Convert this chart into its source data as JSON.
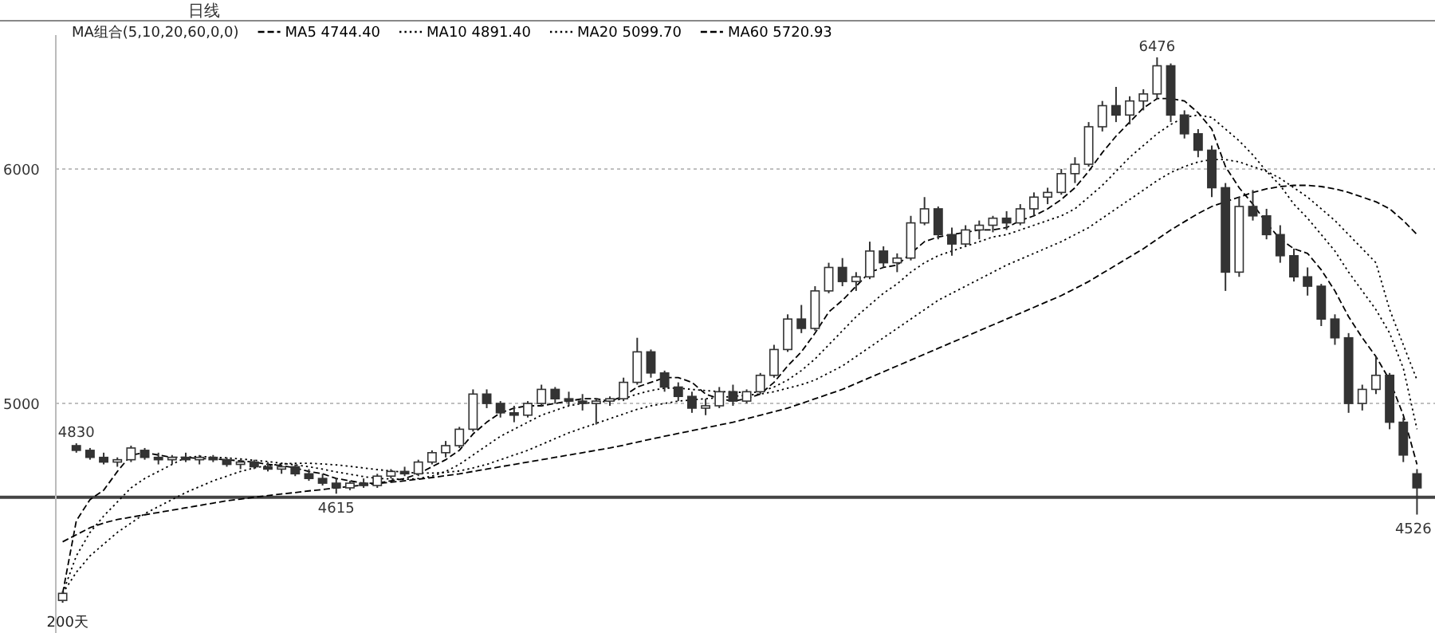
{
  "chart_data": {
    "type": "candlestick",
    "subtitle": "日线",
    "color": "#333333",
    "categories": [
      null,
      null,
      null,
      null,
      null,
      null,
      null,
      null,
      null,
      null,
      null,
      null,
      null,
      null,
      null,
      null,
      null,
      null,
      null,
      null,
      null,
      null,
      null,
      null,
      null,
      null,
      null,
      null,
      null,
      null,
      null,
      null,
      null,
      null,
      null,
      null,
      null,
      null,
      null,
      null,
      null,
      null,
      null,
      null,
      null,
      null,
      null,
      null,
      null,
      null,
      null,
      null,
      null,
      null,
      null,
      null,
      null,
      null,
      null,
      null,
      null,
      null,
      null,
      null,
      null,
      null,
      null,
      null,
      null,
      null,
      null,
      null,
      null,
      null,
      null,
      null,
      null,
      null,
      null,
      null,
      null,
      null,
      null,
      null,
      null,
      null,
      null,
      null,
      null,
      null,
      null,
      null,
      null,
      null,
      null,
      null,
      null,
      null,
      null,
      null
    ],
    "ohlc": [
      [
        4160,
        4200,
        4150,
        4190
      ],
      [
        4820,
        4830,
        4790,
        4800
      ],
      [
        4800,
        4810,
        4760,
        4770
      ],
      [
        4770,
        4790,
        4740,
        4750
      ],
      [
        4750,
        4770,
        4730,
        4760
      ],
      [
        4760,
        4820,
        4750,
        4810
      ],
      [
        4800,
        4810,
        4760,
        4770
      ],
      [
        4770,
        4790,
        4740,
        4760
      ],
      [
        4760,
        4780,
        4740,
        4770
      ],
      [
        4770,
        4790,
        4750,
        4760
      ],
      [
        4760,
        4780,
        4740,
        4770
      ],
      [
        4770,
        4780,
        4750,
        4760
      ],
      [
        4760,
        4770,
        4730,
        4740
      ],
      [
        4740,
        4760,
        4720,
        4750
      ],
      [
        4750,
        4760,
        4720,
        4730
      ],
      [
        4730,
        4750,
        4710,
        4720
      ],
      [
        4720,
        4740,
        4700,
        4730
      ],
      [
        4730,
        4740,
        4690,
        4700
      ],
      [
        4700,
        4720,
        4670,
        4680
      ],
      [
        4680,
        4700,
        4650,
        4660
      ],
      [
        4660,
        4680,
        4615,
        4640
      ],
      [
        4640,
        4670,
        4630,
        4660
      ],
      [
        4660,
        4680,
        4640,
        4650
      ],
      [
        4650,
        4700,
        4640,
        4690
      ],
      [
        4690,
        4720,
        4680,
        4710
      ],
      [
        4710,
        4730,
        4690,
        4700
      ],
      [
        4700,
        4760,
        4690,
        4750
      ],
      [
        4750,
        4800,
        4740,
        4790
      ],
      [
        4790,
        4840,
        4770,
        4820
      ],
      [
        4820,
        4900,
        4810,
        4890
      ],
      [
        4890,
        5060,
        4880,
        5040
      ],
      [
        5040,
        5060,
        4980,
        5000
      ],
      [
        5000,
        5010,
        4940,
        4960
      ],
      [
        4960,
        4990,
        4920,
        4950
      ],
      [
        4950,
        5010,
        4940,
        5000
      ],
      [
        5000,
        5080,
        4990,
        5060
      ],
      [
        5060,
        5070,
        5000,
        5020
      ],
      [
        5020,
        5050,
        4990,
        5010
      ],
      [
        5010,
        5040,
        4970,
        5000
      ],
      [
        5000,
        5020,
        4910,
        5010
      ],
      [
        5010,
        5030,
        4990,
        5020
      ],
      [
        5020,
        5110,
        5010,
        5090
      ],
      [
        5090,
        5280,
        5080,
        5220
      ],
      [
        5220,
        5230,
        5110,
        5130
      ],
      [
        5130,
        5140,
        5050,
        5070
      ],
      [
        5070,
        5090,
        5010,
        5030
      ],
      [
        5030,
        5050,
        4960,
        4980
      ],
      [
        4980,
        5020,
        4950,
        4990
      ],
      [
        4990,
        5070,
        4980,
        5050
      ],
      [
        5050,
        5080,
        4990,
        5010
      ],
      [
        5010,
        5060,
        5000,
        5050
      ],
      [
        5050,
        5130,
        5040,
        5120
      ],
      [
        5120,
        5250,
        5110,
        5230
      ],
      [
        5230,
        5380,
        5220,
        5360
      ],
      [
        5360,
        5420,
        5300,
        5320
      ],
      [
        5320,
        5500,
        5310,
        5480
      ],
      [
        5480,
        5600,
        5470,
        5580
      ],
      [
        5580,
        5620,
        5500,
        5520
      ],
      [
        5520,
        5560,
        5480,
        5540
      ],
      [
        5540,
        5690,
        5530,
        5650
      ],
      [
        5650,
        5670,
        5580,
        5600
      ],
      [
        5600,
        5640,
        5560,
        5620
      ],
      [
        5620,
        5800,
        5610,
        5770
      ],
      [
        5770,
        5880,
        5760,
        5830
      ],
      [
        5830,
        5840,
        5700,
        5720
      ],
      [
        5720,
        5750,
        5630,
        5680
      ],
      [
        5680,
        5760,
        5670,
        5740
      ],
      [
        5740,
        5780,
        5700,
        5760
      ],
      [
        5760,
        5800,
        5730,
        5790
      ],
      [
        5790,
        5820,
        5740,
        5770
      ],
      [
        5770,
        5850,
        5760,
        5830
      ],
      [
        5830,
        5900,
        5800,
        5880
      ],
      [
        5880,
        5920,
        5850,
        5900
      ],
      [
        5900,
        6000,
        5890,
        5980
      ],
      [
        5980,
        6050,
        5940,
        6020
      ],
      [
        6020,
        6200,
        6010,
        6180
      ],
      [
        6180,
        6290,
        6160,
        6270
      ],
      [
        6270,
        6350,
        6200,
        6230
      ],
      [
        6230,
        6310,
        6190,
        6290
      ],
      [
        6290,
        6340,
        6250,
        6320
      ],
      [
        6320,
        6476,
        6300,
        6440
      ],
      [
        6440,
        6450,
        6200,
        6230
      ],
      [
        6230,
        6250,
        6130,
        6150
      ],
      [
        6150,
        6170,
        6050,
        6080
      ],
      [
        6080,
        6100,
        5880,
        5920
      ],
      [
        5920,
        5940,
        5480,
        5560
      ],
      [
        5560,
        5880,
        5540,
        5840
      ],
      [
        5840,
        5910,
        5780,
        5800
      ],
      [
        5800,
        5830,
        5700,
        5720
      ],
      [
        5720,
        5760,
        5600,
        5630
      ],
      [
        5630,
        5660,
        5520,
        5540
      ],
      [
        5540,
        5580,
        5460,
        5500
      ],
      [
        5500,
        5510,
        5330,
        5360
      ],
      [
        5360,
        5380,
        5250,
        5280
      ],
      [
        5280,
        5300,
        4960,
        5000
      ],
      [
        5000,
        5080,
        4970,
        5060
      ],
      [
        5060,
        5200,
        5040,
        5120
      ],
      [
        5120,
        5130,
        4890,
        4920
      ],
      [
        4920,
        4940,
        4750,
        4780
      ],
      [
        4700,
        4720,
        4526,
        4640
      ]
    ],
    "series": [
      {
        "type": "line",
        "name": "MA5 4744.40",
        "color": "#000000",
        "line_style": "dashed",
        "values": [
          4190,
          4500,
          4590,
          4630,
          4710,
          4780,
          4790,
          4780,
          4770,
          4770,
          4765,
          4763,
          4760,
          4755,
          4750,
          4740,
          4735,
          4725,
          4710,
          4700,
          4680,
          4670,
          4660,
          4660,
          4670,
          4680,
          4700,
          4730,
          4760,
          4800,
          4870,
          4920,
          4960,
          4980,
          4990,
          4990,
          5000,
          5010,
          5020,
          5020,
          5010,
          5030,
          5070,
          5090,
          5110,
          5110,
          5090,
          5040,
          5020,
          5010,
          5020,
          5040,
          5090,
          5160,
          5220,
          5300,
          5390,
          5440,
          5500,
          5560,
          5580,
          5590,
          5640,
          5690,
          5710,
          5720,
          5730,
          5740,
          5740,
          5750,
          5780,
          5800,
          5830,
          5870,
          5920,
          5990,
          6070,
          6140,
          6200,
          6260,
          6300,
          6300,
          6290,
          6240,
          6170,
          6010,
          5920,
          5850,
          5770,
          5700,
          5660,
          5640,
          5570,
          5480,
          5370,
          5280,
          5200,
          5100,
          4950,
          4740
        ]
      },
      {
        "type": "line",
        "name": "MA10 4891.40",
        "color": "#000000",
        "line_style": "dotted",
        "values": [
          4190,
          4350,
          4450,
          4520,
          4580,
          4640,
          4680,
          4710,
          4740,
          4770,
          4775,
          4770,
          4768,
          4763,
          4758,
          4752,
          4745,
          4738,
          4730,
          4720,
          4708,
          4698,
          4688,
          4680,
          4678,
          4676,
          4680,
          4690,
          4710,
          4740,
          4780,
          4820,
          4860,
          4890,
          4920,
          4950,
          4970,
          4990,
          5000,
          5005,
          5010,
          5020,
          5040,
          5055,
          5065,
          5065,
          5060,
          5055,
          5050,
          5050,
          5045,
          5050,
          5070,
          5100,
          5140,
          5190,
          5250,
          5310,
          5370,
          5420,
          5470,
          5510,
          5560,
          5600,
          5630,
          5650,
          5670,
          5690,
          5710,
          5720,
          5740,
          5760,
          5780,
          5800,
          5830,
          5880,
          5930,
          5990,
          6050,
          6100,
          6150,
          6190,
          6220,
          6230,
          6220,
          6170,
          6120,
          6060,
          5990,
          5930,
          5850,
          5790,
          5720,
          5650,
          5560,
          5480,
          5400,
          5300,
          5150,
          4890
        ]
      },
      {
        "type": "line",
        "name": "MA20 5099.70",
        "color": "#000000",
        "line_style": "dotted",
        "values": [
          4190,
          4280,
          4350,
          4400,
          4450,
          4490,
          4530,
          4560,
          4590,
          4620,
          4645,
          4670,
          4690,
          4710,
          4725,
          4735,
          4742,
          4745,
          4745,
          4742,
          4738,
          4732,
          4725,
          4718,
          4712,
          4706,
          4703,
          4703,
          4706,
          4712,
          4725,
          4740,
          4760,
          4780,
          4800,
          4825,
          4850,
          4875,
          4895,
          4915,
          4935,
          4955,
          4975,
          4990,
          5000,
          5010,
          5015,
          5020,
          5025,
          5030,
          5035,
          5040,
          5050,
          5065,
          5080,
          5100,
          5130,
          5160,
          5200,
          5240,
          5280,
          5320,
          5360,
          5400,
          5440,
          5470,
          5500,
          5530,
          5560,
          5590,
          5615,
          5640,
          5665,
          5690,
          5720,
          5750,
          5790,
          5830,
          5870,
          5910,
          5950,
          5985,
          6010,
          6030,
          6040,
          6040,
          6030,
          6010,
          5990,
          5960,
          5920,
          5880,
          5830,
          5780,
          5720,
          5660,
          5600,
          5400,
          5250,
          5100
        ]
      },
      {
        "type": "line",
        "name": "MA60 5720.93",
        "color": "#000000",
        "line_style": "dashed",
        "values": [
          4410,
          4440,
          4470,
          4490,
          4505,
          4515,
          4525,
          4535,
          4545,
          4555,
          4565,
          4575,
          4585,
          4592,
          4600,
          4607,
          4614,
          4620,
          4627,
          4633,
          4640,
          4646,
          4652,
          4658,
          4664,
          4670,
          4677,
          4684,
          4692,
          4700,
          4710,
          4720,
          4730,
          4740,
          4750,
          4760,
          4770,
          4780,
          4790,
          4800,
          4810,
          4822,
          4835,
          4848,
          4860,
          4872,
          4884,
          4896,
          4908,
          4920,
          4935,
          4950,
          4965,
          4980,
          5000,
          5020,
          5040,
          5060,
          5085,
          5110,
          5135,
          5160,
          5185,
          5210,
          5235,
          5260,
          5285,
          5310,
          5335,
          5360,
          5385,
          5410,
          5435,
          5460,
          5490,
          5520,
          5555,
          5590,
          5625,
          5660,
          5700,
          5740,
          5775,
          5810,
          5840,
          5860,
          5880,
          5900,
          5915,
          5925,
          5930,
          5930,
          5925,
          5915,
          5900,
          5880,
          5860,
          5830,
          5780,
          5720
        ]
      }
    ],
    "ylim": [
      4021,
      6571
    ],
    "yticks": [
      5000,
      6000
    ],
    "grid": "y",
    "legend": "top left",
    "ref_lines": [
      {
        "axis": "y",
        "value": 4600,
        "color": "#444444"
      }
    ],
    "annotations": [
      "MA组合(5,10,20,60,0,0)",
      "200天",
      {
        "text": "4830",
        "y": 4830
      },
      {
        "text": "4615",
        "y": 4615
      },
      {
        "text": "6476",
        "y": 6476
      },
      {
        "text": "4526",
        "y": 4526
      }
    ]
  }
}
